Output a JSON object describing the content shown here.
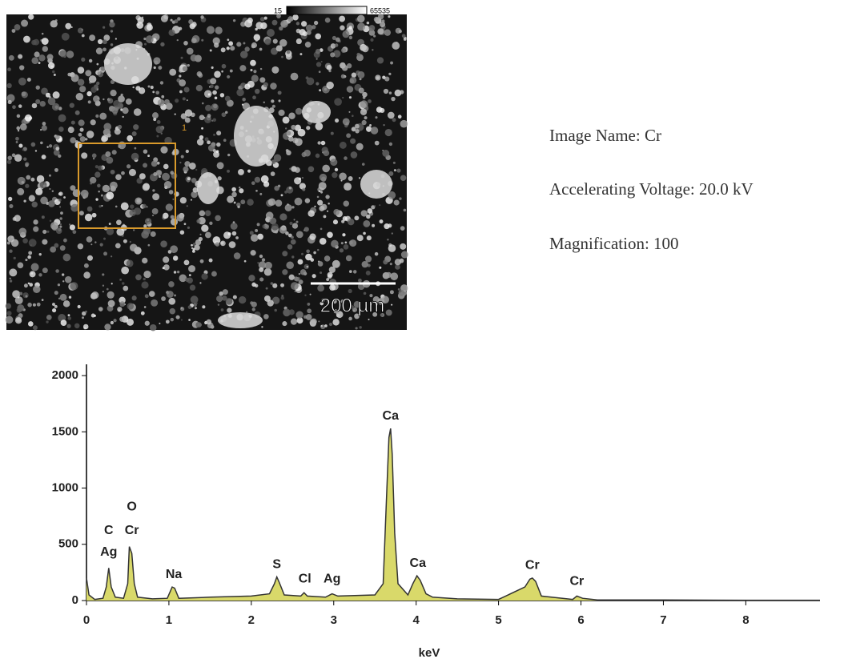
{
  "image": {
    "colorbar_min": "15",
    "colorbar_max": "65535",
    "box_label": "1",
    "scale_bar": "200 µm"
  },
  "info": [
    "Image Name: Cr",
    "Accelerating Voltage: 20.0 kV",
    "Magnification: 100"
  ],
  "chart_data": {
    "type": "line",
    "x_label": "keV",
    "color": "#333333",
    "fill": "#d9d96a",
    "x": [
      0,
      0.03,
      0.1,
      0.2,
      0.24,
      0.27,
      0.3,
      0.35,
      0.45,
      0.5,
      0.52,
      0.55,
      0.58,
      0.62,
      0.8,
      0.98,
      1.04,
      1.07,
      1.12,
      1.5,
      2.0,
      2.22,
      2.28,
      2.31,
      2.34,
      2.4,
      2.6,
      2.64,
      2.68,
      2.9,
      2.98,
      3.05,
      3.5,
      3.6,
      3.64,
      3.67,
      3.69,
      3.71,
      3.74,
      3.78,
      3.9,
      3.96,
      4.01,
      4.05,
      4.12,
      4.2,
      4.5,
      5.0,
      5.32,
      5.38,
      5.41,
      5.45,
      5.52,
      5.9,
      5.95,
      6.02,
      6.2,
      7.0,
      8.0,
      8.9
    ],
    "values": [
      200,
      50,
      10,
      20,
      120,
      290,
      120,
      30,
      20,
      150,
      480,
      420,
      150,
      30,
      15,
      20,
      120,
      110,
      20,
      30,
      40,
      60,
      150,
      210,
      160,
      50,
      40,
      70,
      40,
      30,
      60,
      40,
      50,
      150,
      900,
      1450,
      1530,
      1300,
      600,
      150,
      50,
      150,
      220,
      180,
      60,
      30,
      15,
      10,
      120,
      190,
      200,
      170,
      40,
      10,
      40,
      20,
      5,
      5,
      3,
      3
    ],
    "annotations": [
      {
        "text": "C",
        "x": 0.27,
        "y": 620
      },
      {
        "text": "Ag",
        "x": 0.27,
        "y": 430
      },
      {
        "text": "O",
        "x": 0.55,
        "y": 830
      },
      {
        "text": "Cr",
        "x": 0.55,
        "y": 620
      },
      {
        "text": "Na",
        "x": 1.06,
        "y": 230
      },
      {
        "text": "S",
        "x": 2.31,
        "y": 320
      },
      {
        "text": "Cl",
        "x": 2.65,
        "y": 190
      },
      {
        "text": "Ag",
        "x": 2.98,
        "y": 190
      },
      {
        "text": "Ca",
        "x": 3.69,
        "y": 1640
      },
      {
        "text": "Ca",
        "x": 4.02,
        "y": 330
      },
      {
        "text": "Cr",
        "x": 5.41,
        "y": 310
      },
      {
        "text": "Cr",
        "x": 5.95,
        "y": 170
      }
    ],
    "xlim": [
      0,
      8.9
    ],
    "xticks": [
      0,
      1,
      2,
      3,
      4,
      5,
      6,
      7,
      8
    ],
    "ylim": [
      0,
      2100
    ],
    "yticks": [
      0,
      500,
      1000,
      1500,
      2000
    ]
  }
}
